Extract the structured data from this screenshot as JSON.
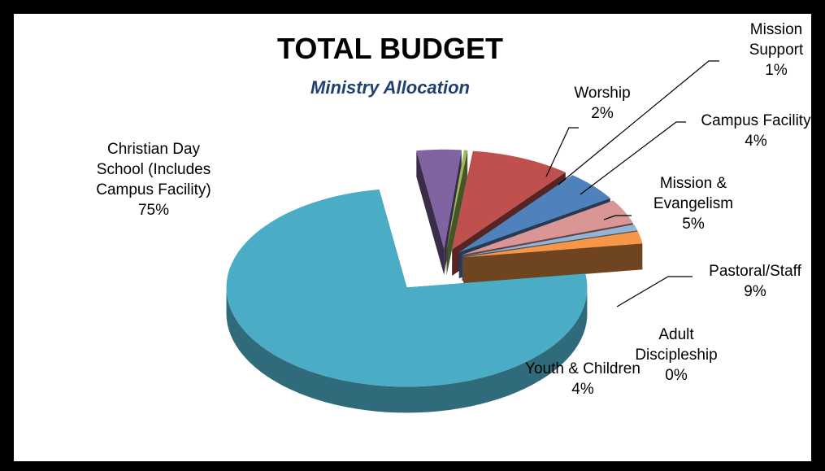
{
  "chart_data": {
    "type": "pie",
    "title": "TOTAL BUDGET",
    "subtitle": "Ministry Allocation",
    "slices": [
      {
        "label": "Christian Day School (Includes Campus Facility)",
        "label_lines": [
          "Christian Day",
          "School (Includes",
          "Campus Facility)"
        ],
        "pct_text": "75%",
        "value": 75,
        "color": "#4BACC6"
      },
      {
        "label": "Youth & Children",
        "label_lines": [
          "Youth & Children"
        ],
        "pct_text": "4%",
        "value": 4,
        "color": "#8064A2"
      },
      {
        "label": "Adult Discipleship",
        "label_lines": [
          "Adult",
          "Discipleship"
        ],
        "pct_text": "0%",
        "value": 0.3,
        "color": "#9BBB59"
      },
      {
        "label": "Pastoral/Staff",
        "label_lines": [
          "Pastoral/Staff"
        ],
        "pct_text": "9%",
        "value": 9,
        "color": "#C0504D"
      },
      {
        "label": "Mission & Evangelism",
        "label_lines": [
          "Mission &",
          "Evangelism"
        ],
        "pct_text": "5%",
        "value": 5,
        "color": "#4F81BD"
      },
      {
        "label": "Campus Facility",
        "label_lines": [
          "Campus Facility"
        ],
        "pct_text": "4%",
        "value": 4,
        "color": "#D99694"
      },
      {
        "label": "Mission Support",
        "label_lines": [
          "Mission",
          "Support"
        ],
        "pct_text": "1%",
        "value": 1,
        "color": "#95B3D7"
      },
      {
        "label": "Worship",
        "label_lines": [
          "Worship"
        ],
        "pct_text": "2%",
        "value": 2,
        "color": "#F79646"
      }
    ]
  }
}
